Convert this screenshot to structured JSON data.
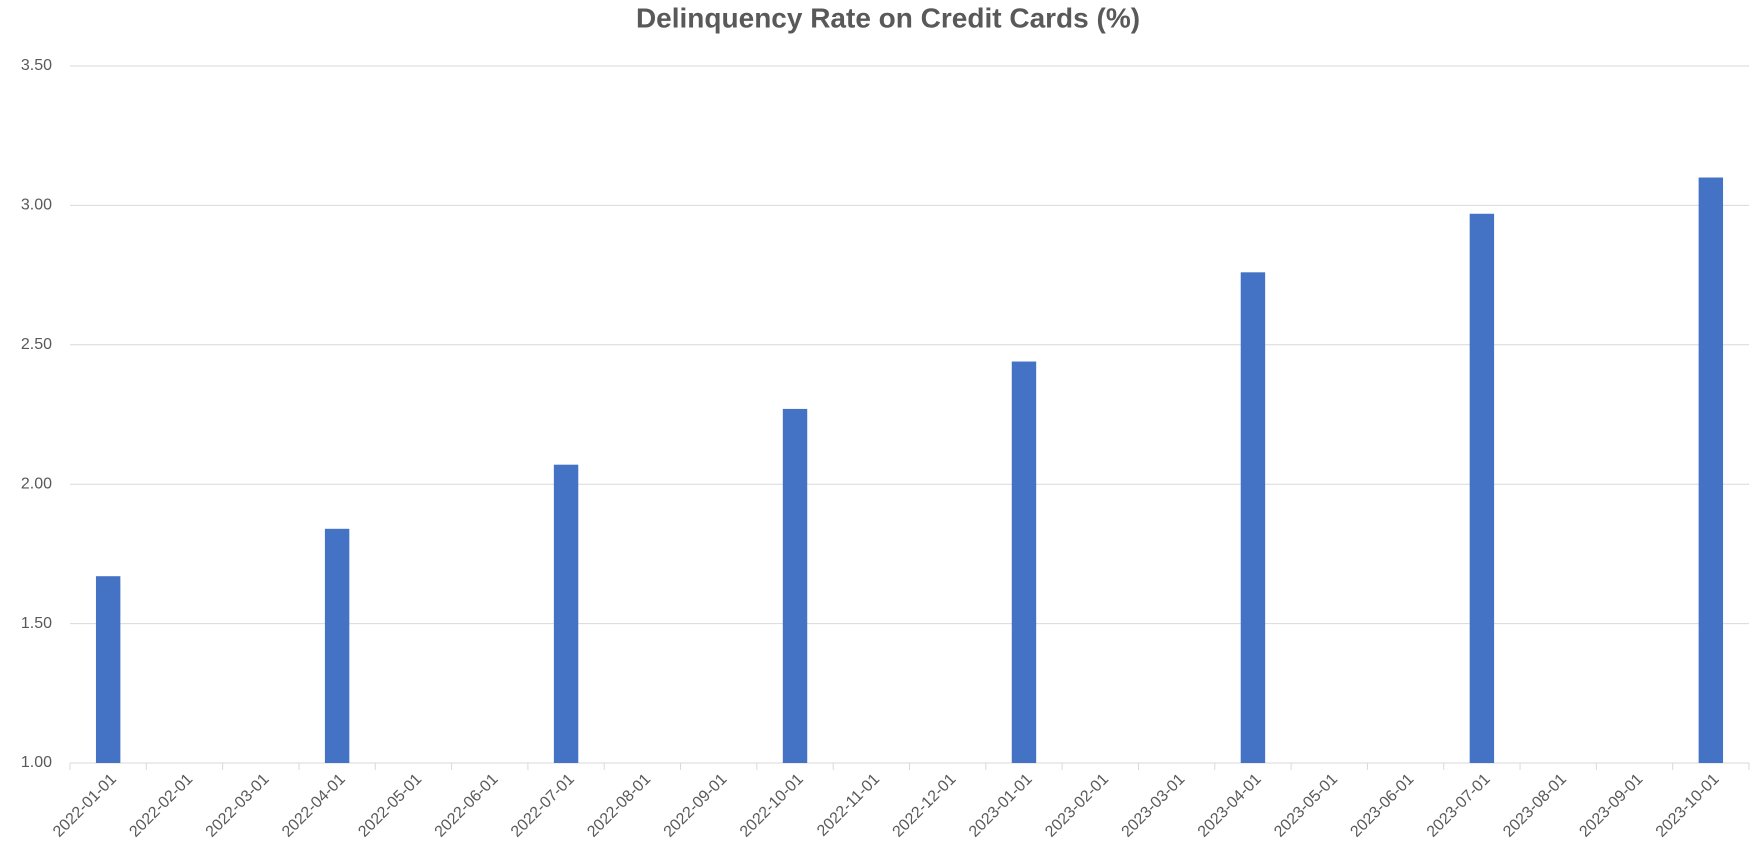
{
  "chart_data": {
    "type": "bar",
    "title": "Delinquency Rate on Credit Cards (%)",
    "categories": [
      "2022-01-01",
      "2022-02-01",
      "2022-03-01",
      "2022-04-01",
      "2022-05-01",
      "2022-06-01",
      "2022-07-01",
      "2022-08-01",
      "2022-09-01",
      "2022-10-01",
      "2022-11-01",
      "2022-12-01",
      "2023-01-01",
      "2023-02-01",
      "2023-03-01",
      "2023-04-01",
      "2023-05-01",
      "2023-06-01",
      "2023-07-01",
      "2023-08-01",
      "2023-09-01",
      "2023-10-01"
    ],
    "values": [
      1.67,
      null,
      null,
      1.84,
      null,
      null,
      2.07,
      null,
      null,
      2.27,
      null,
      null,
      2.44,
      null,
      null,
      2.76,
      null,
      null,
      2.97,
      null,
      null,
      3.1
    ],
    "color": "#4472c4",
    "ylim": [
      1,
      3.5
    ],
    "yticks": [
      {
        "value": 1,
        "label": "1.00"
      },
      {
        "value": 1.5,
        "label": "1.50"
      },
      {
        "value": 2,
        "label": "2.00"
      },
      {
        "value": 2.5,
        "label": "2.50"
      },
      {
        "value": 3,
        "label": "3.00"
      },
      {
        "value": 3.5,
        "label": "3.50"
      }
    ],
    "grid": true
  }
}
